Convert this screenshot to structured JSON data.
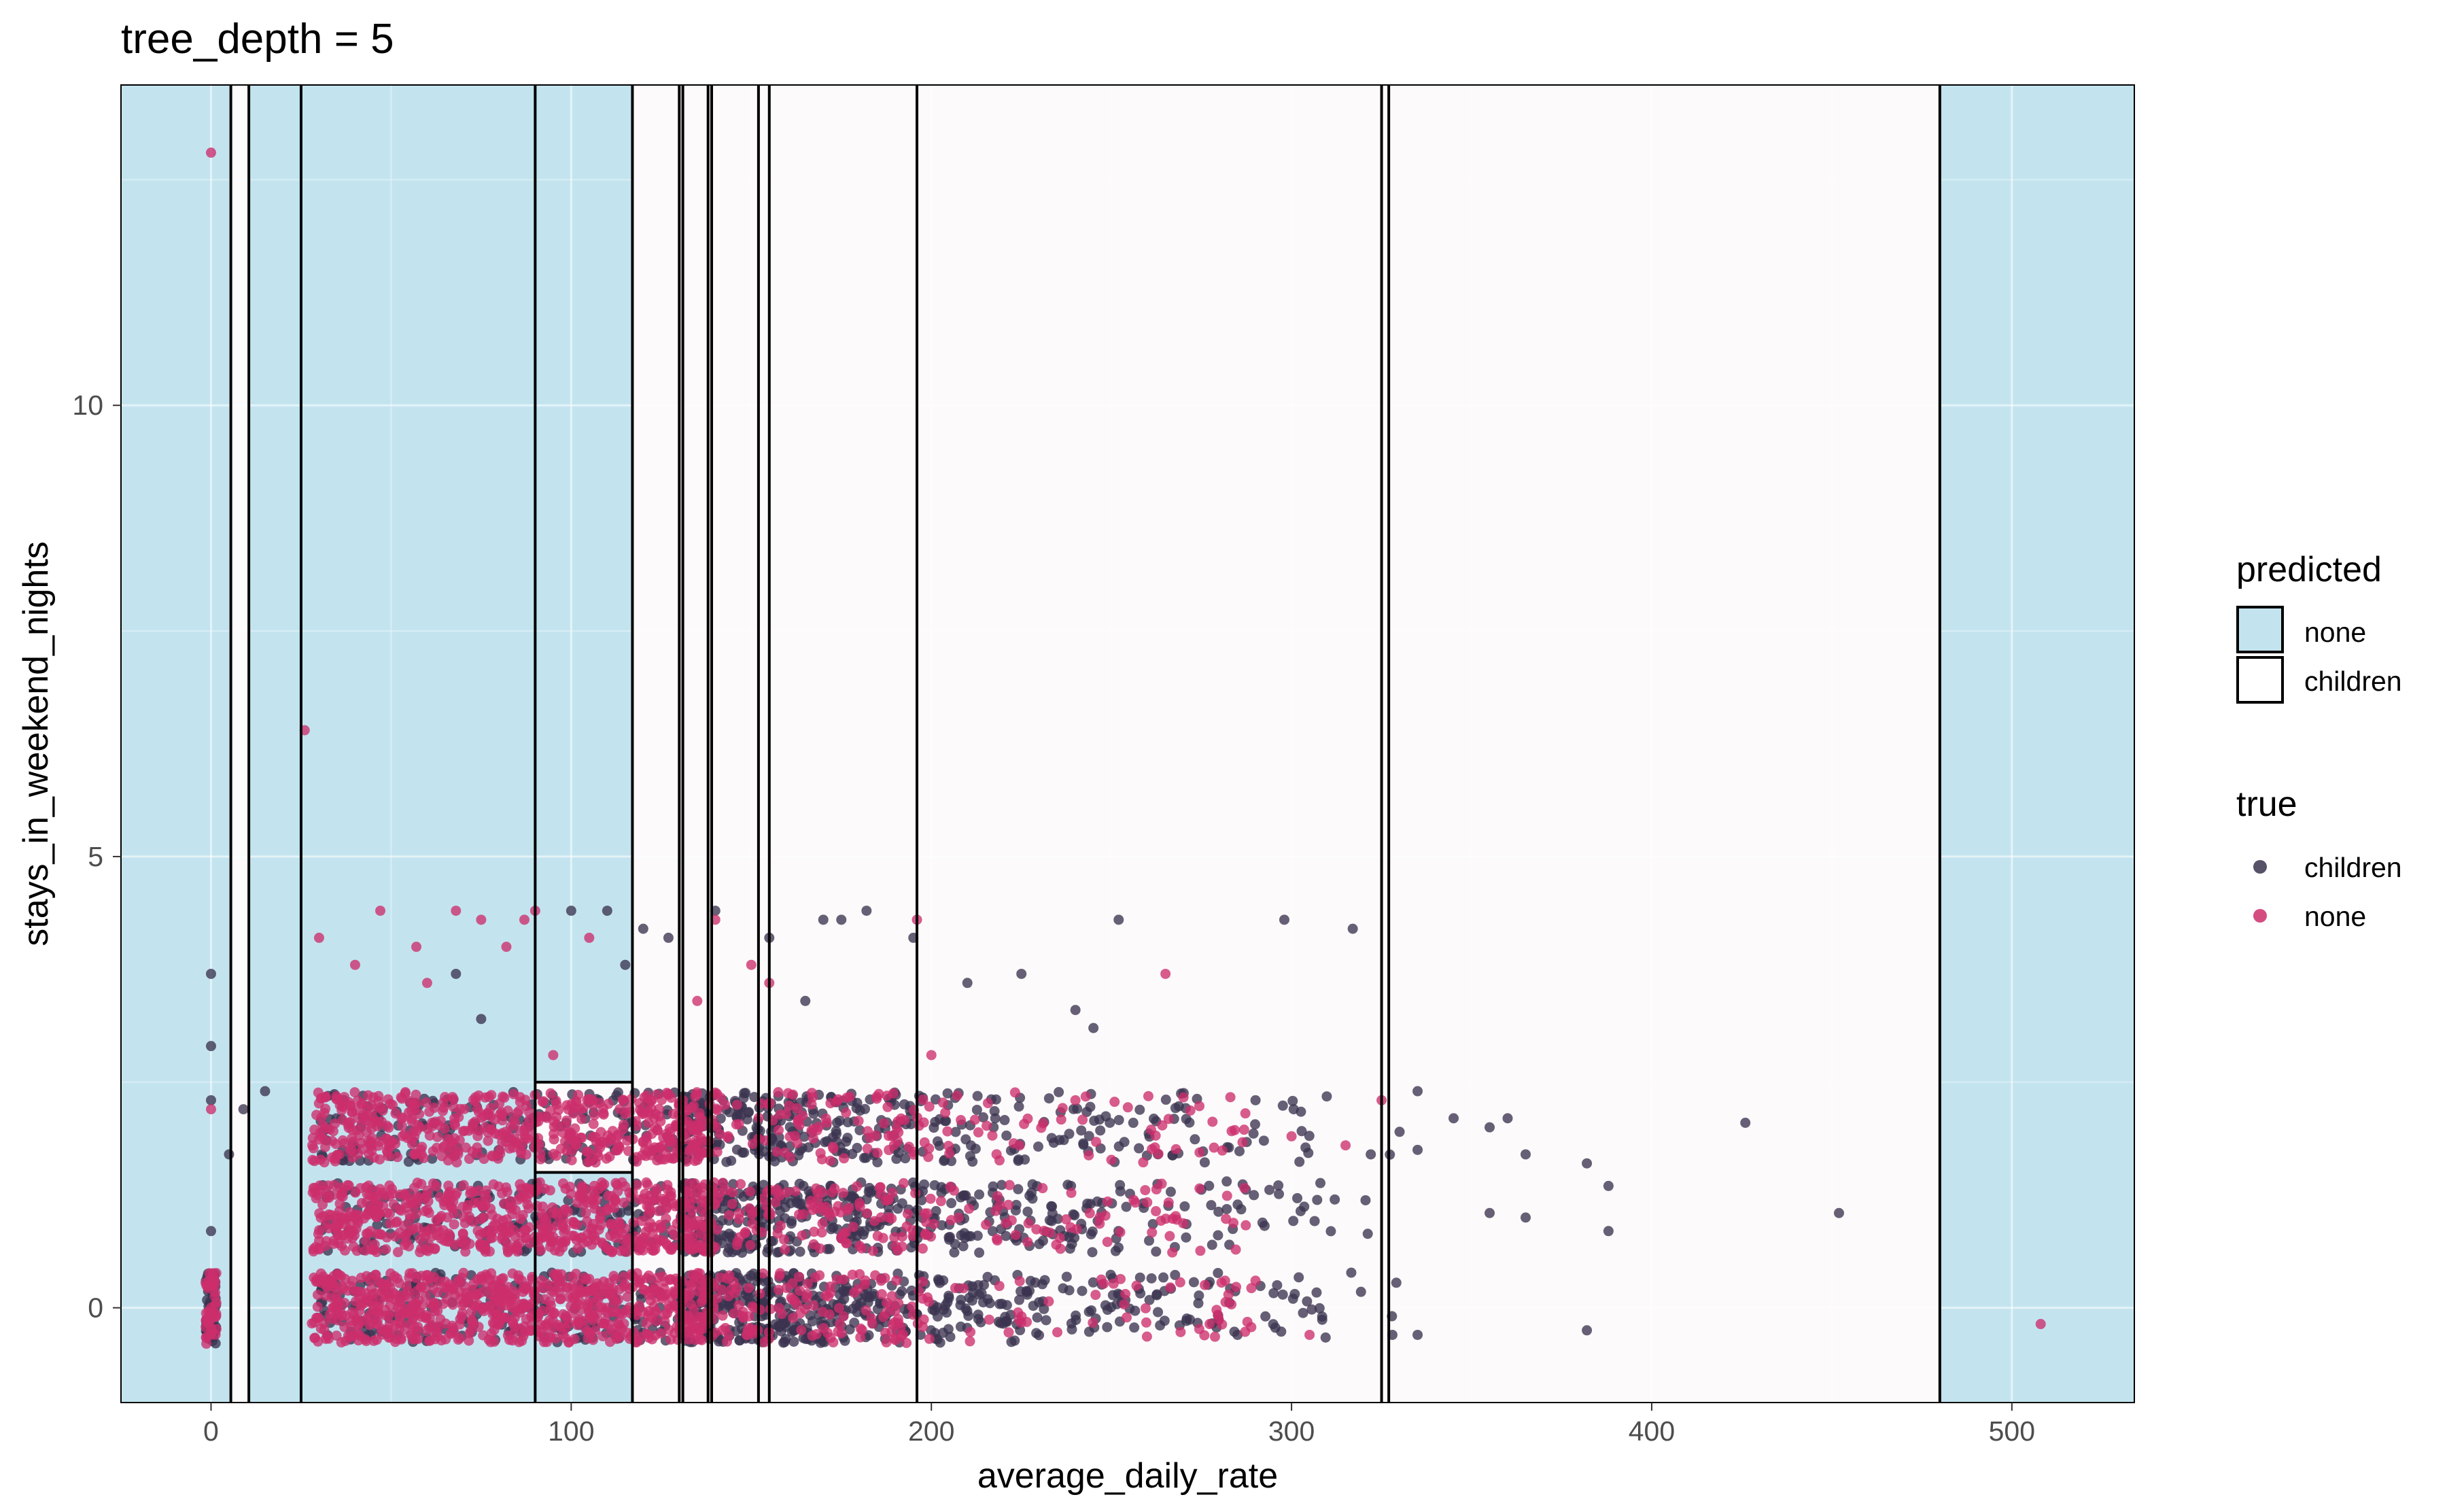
{
  "chart_data": {
    "type": "scatter",
    "title": "tree_depth = 5",
    "xlabel": "average_daily_rate",
    "ylabel": "stays_in_weekend_nights",
    "xlim": [
      -25,
      534
    ],
    "ylim": [
      -1.05,
      13.55
    ],
    "xticks": [
      0,
      100,
      200,
      300,
      400,
      500
    ],
    "yticks": [
      0,
      5,
      10
    ],
    "grid": true,
    "background_regions": {
      "legend_title": "predicted",
      "classes": [
        {
          "name": "none",
          "color": "#c3e4ef"
        },
        {
          "name": "children",
          "color": "#fcfafb"
        }
      ],
      "regions": [
        {
          "x": [
            -25,
            5.5
          ],
          "y": [
            -1.05,
            13.55
          ],
          "class": "none"
        },
        {
          "x": [
            5.5,
            10.5
          ],
          "y": [
            -1.05,
            13.55
          ],
          "class": "children"
        },
        {
          "x": [
            10.5,
            25
          ],
          "y": [
            -1.05,
            13.55
          ],
          "class": "none"
        },
        {
          "x": [
            25,
            90
          ],
          "y": [
            -1.05,
            13.55
          ],
          "class": "none"
        },
        {
          "x": [
            90,
            117
          ],
          "y": [
            2.5,
            13.55
          ],
          "class": "none"
        },
        {
          "x": [
            90,
            117
          ],
          "y": [
            1.5,
            2.5
          ],
          "class": "children"
        },
        {
          "x": [
            90,
            117
          ],
          "y": [
            -1.05,
            1.5
          ],
          "class": "none"
        },
        {
          "x": [
            117,
            130
          ],
          "y": [
            -1.05,
            13.55
          ],
          "class": "children"
        },
        {
          "x": [
            130,
            138
          ],
          "y": [
            -1.05,
            13.55
          ],
          "class": "children"
        },
        {
          "x": [
            138,
            152
          ],
          "y": [
            -1.05,
            13.55
          ],
          "class": "children"
        },
        {
          "x": [
            152,
            155
          ],
          "y": [
            -1.05,
            13.55
          ],
          "class": "children"
        },
        {
          "x": [
            155,
            196
          ],
          "y": [
            -1.05,
            13.55
          ],
          "class": "children"
        },
        {
          "x": [
            196,
            325
          ],
          "y": [
            -1.05,
            13.55
          ],
          "class": "children"
        },
        {
          "x": [
            325,
            327
          ],
          "y": [
            -1.05,
            13.55
          ],
          "class": "children"
        },
        {
          "x": [
            327,
            480
          ],
          "y": [
            -1.05,
            13.55
          ],
          "class": "children"
        },
        {
          "x": [
            480,
            534
          ],
          "y": [
            -1.05,
            13.55
          ],
          "class": "none"
        }
      ],
      "boundary_lines_x": [
        5.5,
        10.5,
        25,
        90,
        117,
        130,
        131,
        138,
        139,
        152,
        155,
        196,
        325,
        327,
        480
      ],
      "boundary_segments_y": [
        {
          "y": 2.5,
          "x": [
            90,
            117
          ]
        },
        {
          "y": 1.5,
          "x": [
            90,
            117
          ]
        }
      ]
    },
    "point_legend_title": "true",
    "series": [
      {
        "name": "children",
        "color": "#3b3350",
        "notable_points": [
          [
            0,
            3.7
          ],
          [
            0,
            2.9
          ],
          [
            0,
            2.3
          ],
          [
            0,
            0.85
          ],
          [
            0,
            -0.3
          ],
          [
            5,
            1.7
          ],
          [
            9,
            2.2
          ],
          [
            15,
            2.4
          ],
          [
            75,
            3.2
          ],
          [
            68,
            3.7
          ],
          [
            100,
            4.4
          ],
          [
            110,
            4.4
          ],
          [
            115,
            3.8
          ],
          [
            120,
            4.2
          ],
          [
            127,
            4.1
          ],
          [
            140,
            4.4
          ],
          [
            155,
            4.1
          ],
          [
            165,
            3.4
          ],
          [
            170,
            4.3
          ],
          [
            175,
            4.3
          ],
          [
            182,
            4.4
          ],
          [
            195,
            4.1
          ],
          [
            210,
            3.6
          ],
          [
            225,
            3.7
          ],
          [
            240,
            3.3
          ],
          [
            245,
            3.1
          ],
          [
            252,
            4.3
          ],
          [
            298,
            4.3
          ],
          [
            317,
            4.2
          ],
          [
            335,
            2.4
          ],
          [
            345,
            2.1
          ],
          [
            355,
            2.0
          ],
          [
            360,
            2.1
          ],
          [
            365,
            1.7
          ],
          [
            382,
            1.6
          ],
          [
            388,
            1.35
          ],
          [
            426,
            2.05
          ],
          [
            355,
            1.05
          ],
          [
            365,
            1.0
          ],
          [
            388,
            0.85
          ],
          [
            452,
            1.05
          ],
          [
            382,
            -0.25
          ],
          [
            335,
            -0.3
          ],
          [
            328,
            -0.3
          ],
          [
            322,
            1.7
          ],
          [
            312,
            1.2
          ],
          [
            290,
            2.3
          ],
          [
            282,
            1.4
          ],
          [
            296,
            0.25
          ],
          [
            285,
            -0.3
          ],
          [
            330,
            1.95
          ],
          [
            335,
            1.75
          ]
        ]
      },
      {
        "name": "none",
        "color": "#cc2e6b",
        "notable_points": [
          [
            0,
            12.8
          ],
          [
            26,
            6.4
          ],
          [
            0,
            2.2
          ],
          [
            0,
            0.0
          ],
          [
            0,
            -0.3
          ],
          [
            30,
            4.1
          ],
          [
            40,
            3.8
          ],
          [
            47,
            4.4
          ],
          [
            57,
            4.0
          ],
          [
            60,
            3.6
          ],
          [
            68,
            4.4
          ],
          [
            75,
            4.3
          ],
          [
            82,
            4.0
          ],
          [
            87,
            4.3
          ],
          [
            90,
            4.4
          ],
          [
            95,
            2.8
          ],
          [
            105,
            4.1
          ],
          [
            135,
            3.4
          ],
          [
            140,
            4.3
          ],
          [
            150,
            3.8
          ],
          [
            155,
            3.6
          ],
          [
            196,
            4.3
          ],
          [
            200,
            2.8
          ],
          [
            240,
            2.3
          ],
          [
            265,
            3.7
          ],
          [
            300,
            1.9
          ],
          [
            315,
            1.8
          ],
          [
            325,
            2.3
          ],
          [
            305,
            -0.3
          ],
          [
            290,
            0.3
          ],
          [
            508,
            -0.18
          ]
        ]
      }
    ]
  }
}
